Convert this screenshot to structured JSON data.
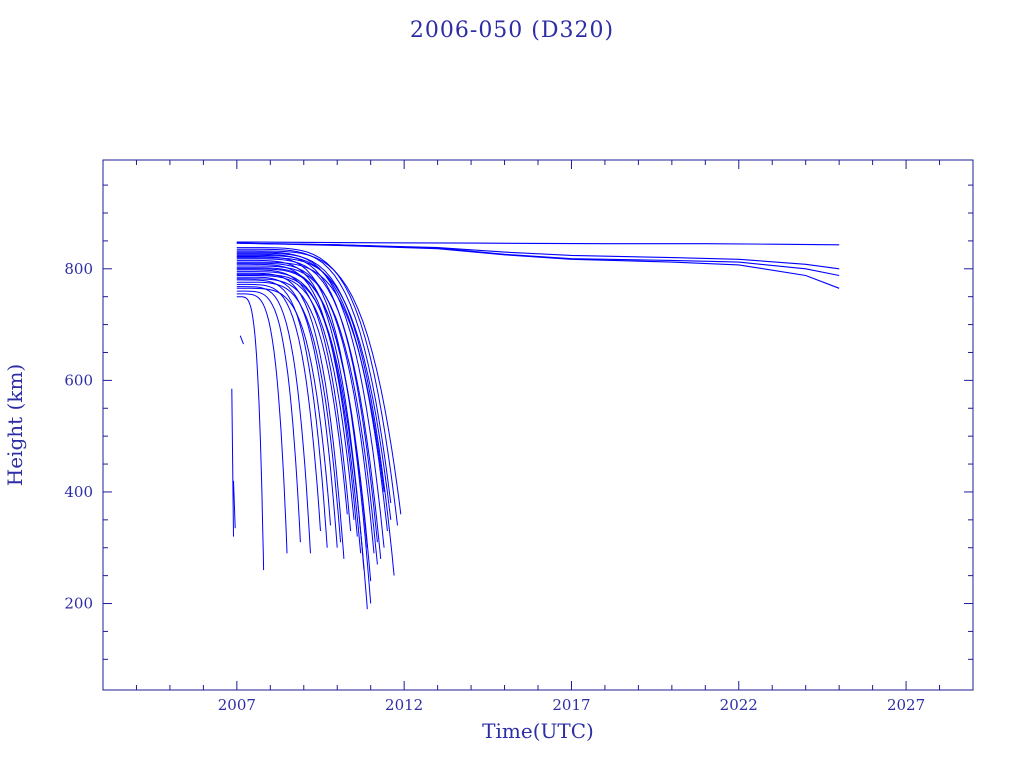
{
  "chart_data": {
    "type": "line",
    "title": "2006-050 (D320)",
    "xlabel": "Time(UTC)",
    "ylabel": "Height (km)",
    "xlim": [
      2003,
      2029
    ],
    "ylim": [
      45,
      995
    ],
    "x_ticks": [
      "2007",
      "2012",
      "2017",
      "2022",
      "2027"
    ],
    "y_ticks": [
      "200",
      "400",
      "600",
      "800"
    ],
    "grid": false,
    "legend": "none",
    "colors": {
      "line": "#0000ff",
      "axis": "#1c1c96",
      "text": "#2d2da6"
    },
    "long_lived_series": [
      {
        "x": [
          2007.0,
          2010.0,
          2014.0,
          2018.0,
          2021.0,
          2023.0,
          2025.0
        ],
        "y": [
          848,
          847,
          846,
          845,
          845,
          844,
          843
        ]
      },
      {
        "x": [
          2007.0,
          2010.0,
          2013.0,
          2015.0,
          2017.0,
          2020.0,
          2022.0,
          2024.0,
          2025.0
        ],
        "y": [
          846,
          843,
          838,
          830,
          824,
          820,
          817,
          808,
          800
        ]
      },
      {
        "x": [
          2007.0,
          2010.0,
          2013.0,
          2015.0,
          2017.0,
          2020.0,
          2022.0,
          2024.0,
          2025.0
        ],
        "y": [
          846,
          843,
          837,
          826,
          818,
          815,
          812,
          800,
          788
        ]
      },
      {
        "x": [
          2007.0,
          2010.0,
          2013.0,
          2015.0,
          2017.0,
          2020.0,
          2022.0,
          2024.0,
          2025.0
        ],
        "y": [
          846,
          842,
          836,
          825,
          817,
          812,
          807,
          788,
          765
        ]
      }
    ],
    "decaying_fragments": {
      "x_start": 2007.0,
      "initial_heights_km": [
        838,
        835,
        832,
        830,
        828,
        826,
        824,
        822,
        820,
        818,
        815,
        812,
        810,
        808,
        805,
        802,
        800,
        798,
        795,
        792,
        790,
        788,
        785,
        782,
        780,
        776,
        772,
        768,
        765,
        760,
        755,
        750
      ],
      "reentry_years": [
        2011.8,
        2011.6,
        2011.9,
        2011.4,
        2011.7,
        2011.2,
        2011.5,
        2011.0,
        2011.6,
        2011.3,
        2010.8,
        2011.4,
        2011.1,
        2010.6,
        2011.2,
        2010.9,
        2011.0,
        2010.4,
        2010.7,
        2010.2,
        2010.9,
        2010.5,
        2010.0,
        2010.3,
        2009.7,
        2010.1,
        2009.5,
        2009.2,
        2009.8,
        2008.9,
        2008.5,
        2007.8
      ],
      "final_heights_km": [
        340,
        380,
        360,
        300,
        250,
        310,
        330,
        200,
        350,
        280,
        260,
        400,
        290,
        320,
        270,
        300,
        240,
        330,
        290,
        280,
        190,
        350,
        300,
        360,
        300,
        310,
        330,
        290,
        340,
        310,
        290,
        260
      ],
      "short_fragments": [
        {
          "x": [
            2006.85,
            2006.9
          ],
          "y": [
            585,
            320
          ]
        },
        {
          "x": [
            2006.9,
            2006.95
          ],
          "y": [
            420,
            335
          ]
        },
        {
          "x": [
            2007.1,
            2007.2
          ],
          "y": [
            680,
            665
          ]
        }
      ]
    }
  }
}
